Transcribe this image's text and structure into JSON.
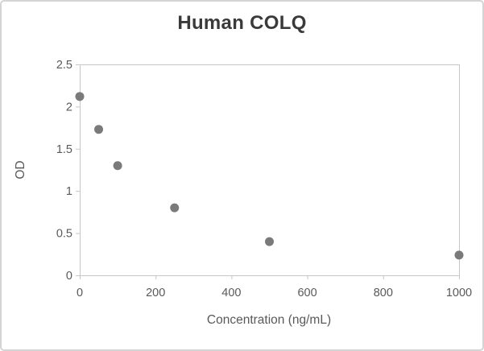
{
  "card": {
    "background": "#ffffff",
    "border_color": "#d4d4d4"
  },
  "chart_data": {
    "type": "scatter",
    "title": "Human COLQ",
    "xlabel": "Concentration (ng/mL)",
    "ylabel": "OD",
    "x": [
      0,
      50,
      100,
      250,
      500,
      1000
    ],
    "y": [
      2.12,
      1.73,
      1.3,
      0.8,
      0.4,
      0.24
    ],
    "xlim": [
      0,
      1000
    ],
    "ylim": [
      0,
      2.5
    ],
    "xticks": [
      0,
      200,
      400,
      600,
      800,
      1000
    ],
    "yticks": [
      0,
      0.5,
      1,
      1.5,
      2,
      2.5
    ],
    "grid": false,
    "legend": null,
    "marker": {
      "shape": "circle",
      "radius": 5.5,
      "color": "#7a7a7a"
    },
    "axis_color": "#c6c6c6",
    "tick_text_color": "#595959",
    "title_color": "#3a3a3a"
  }
}
